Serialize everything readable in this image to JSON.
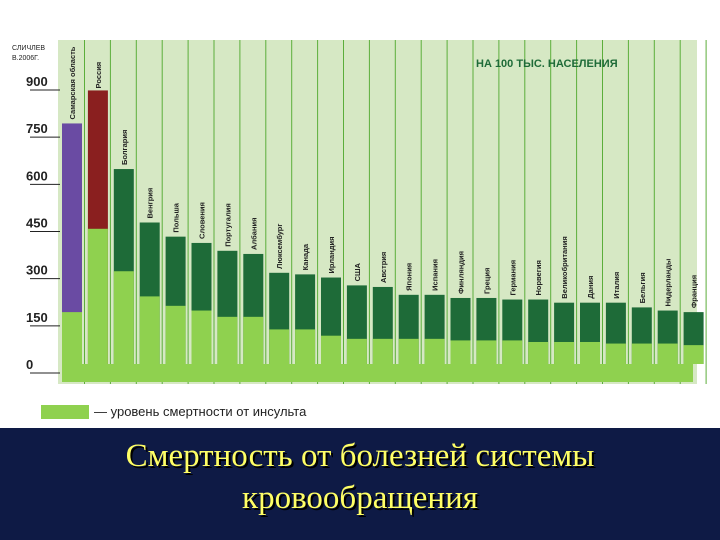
{
  "slide": {
    "title_line1": "Смертность от болезней системы",
    "title_line2": "кровообращения"
  },
  "chart_data": {
    "type": "bar",
    "source_note_line1": "СЛИЧЛЕВ",
    "source_note_line2": "В.2006Г.",
    "title": "НА 100 ТЫС. НАСЕЛЕНИЯ",
    "ylim": [
      0,
      900
    ],
    "yticks": [
      "0",
      "150",
      "300",
      "450",
      "600",
      "750",
      "900"
    ],
    "legend_label": "— уровень смертности от инсульта",
    "categories": [
      "Самарская область",
      "Россия",
      "Болгария",
      "Венгрия",
      "Польша",
      "Словения",
      "Португалия",
      "Албания",
      "Люксембург",
      "Канада",
      "Ирландия",
      "США",
      "Австрия",
      "Япония",
      "Испания",
      "Финляндия",
      "Греция",
      "Германия",
      "Норвегия",
      "Великобритания",
      "Дания",
      "Италия",
      "Бельгия",
      "Нидерланды",
      "Франция"
    ],
    "series": [
      {
        "name": "Всего",
        "values": [
          765,
          870,
          620,
          450,
          405,
          385,
          360,
          350,
          290,
          285,
          275,
          250,
          245,
          220,
          220,
          210,
          210,
          205,
          205,
          195,
          195,
          195,
          180,
          170,
          165
        ]
      },
      {
        "name": "Инсульт",
        "values": [
          165,
          430,
          295,
          215,
          185,
          170,
          150,
          150,
          110,
          110,
          90,
          80,
          80,
          80,
          80,
          75,
          75,
          75,
          70,
          70,
          70,
          65,
          65,
          65,
          60
        ]
      }
    ],
    "colors": {
      "background": "#d6e8c4",
      "gridline": "#5cae3b",
      "total_default": "#1e6b38",
      "total_samara": "#6a4ba3",
      "total_russia": "#8a1f1f",
      "stroke": "#8fd14f",
      "axis_labels": "#222222",
      "title": "#1e6b38"
    }
  }
}
